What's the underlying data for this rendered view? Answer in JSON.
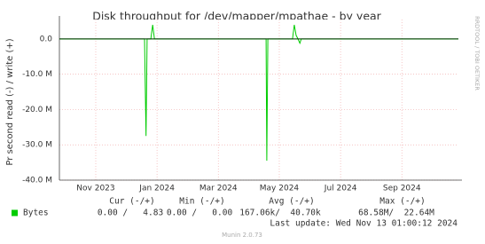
{
  "chart_data": {
    "type": "line",
    "title": "Disk throughput for /dev/mapper/mpathae - by year",
    "y_label": "Pr second read (-) / write (+)",
    "side_label": "RRDTOOL / TOBI OETIKER",
    "x": [
      2023.734,
      2023.966,
      2023.97,
      2023.973,
      2023.983,
      2023.988,
      2023.993,
      2024.297,
      2024.299,
      2024.302,
      2024.369,
      2024.374,
      2024.379,
      2024.384,
      2024.389,
      2024.393,
      2024.821
    ],
    "series": [
      {
        "name": "Bytes",
        "color": "#00cc00",
        "read": [
          0,
          0,
          -27500000,
          0,
          0,
          0,
          0,
          0,
          -34500000,
          0,
          0,
          0,
          0,
          0,
          -1200000,
          0,
          0
        ],
        "values": [
          0,
          0,
          0,
          0,
          0,
          4000000,
          0,
          0,
          0,
          0,
          0,
          4000000,
          1000000,
          0,
          0,
          0,
          0
        ]
      }
    ],
    "xlim": [
      2023.734,
      2024.821
    ],
    "xticks": [
      {
        "value": 2023.833,
        "label": "Nov 2023"
      },
      {
        "value": 2024.0,
        "label": "Jan 2024"
      },
      {
        "value": 2024.167,
        "label": "Mar 2024"
      },
      {
        "value": 2024.333,
        "label": "May 2024"
      },
      {
        "value": 2024.5,
        "label": "Jul 2024"
      },
      {
        "value": 2024.667,
        "label": "Sep 2024"
      }
    ],
    "ylim": [
      -40000000,
      5500000
    ],
    "yticks": [
      {
        "value": 0,
        "label": "0.0"
      },
      {
        "value": -10000000,
        "label": "-10.0 M"
      },
      {
        "value": -20000000,
        "label": "-20.0 M"
      },
      {
        "value": -30000000,
        "label": "-30.0 M"
      },
      {
        "value": -40000000,
        "label": "-40.0 M"
      }
    ],
    "grid": true,
    "legend_table": {
      "headers": [
        "Cur (-/+)",
        "Min (-/+)",
        "Avg (-/+)",
        "Max (-/+)"
      ],
      "rows": [
        [
          "0.00 /   4.83",
          "0.00 /   0.00",
          "167.06k/  40.70k",
          "68.58M/  22.64M"
        ]
      ]
    },
    "last_update": "Last update: Wed Nov 13 01:00:12 2024",
    "footer": "Munin 2.0.73"
  }
}
